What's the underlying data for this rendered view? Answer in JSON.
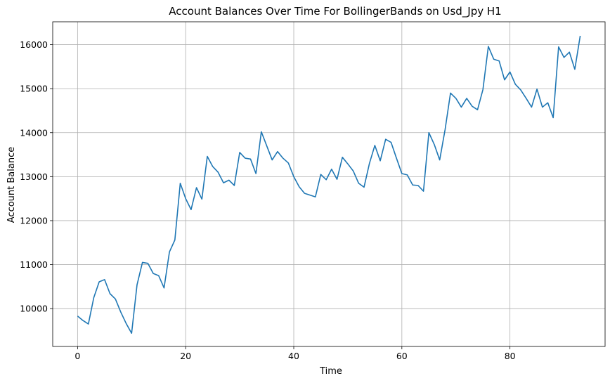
{
  "chart_data": {
    "type": "line",
    "title": "Account Balances Over Time For BollingerBands on Usd_Jpy H1",
    "xlabel": "Time",
    "ylabel": "Account Balance",
    "xlim": [
      -4.6,
      97.6
    ],
    "ylim": [
      9140,
      16520
    ],
    "xticks": [
      0,
      20,
      40,
      60,
      80
    ],
    "yticks": [
      10000,
      11000,
      12000,
      13000,
      14000,
      15000,
      16000
    ],
    "grid": true,
    "series": [
      {
        "color": "#1f77b4",
        "x": [
          0,
          1,
          2,
          3,
          4,
          5,
          6,
          7,
          8,
          9,
          10,
          11,
          12,
          13,
          14,
          15,
          16,
          17,
          18,
          19,
          20,
          21,
          22,
          23,
          24,
          25,
          26,
          27,
          28,
          29,
          30,
          31,
          32,
          33,
          34,
          35,
          36,
          37,
          38,
          39,
          40,
          41,
          42,
          43,
          44,
          45,
          46,
          47,
          48,
          49,
          50,
          51,
          52,
          53,
          54,
          55,
          56,
          57,
          58,
          59,
          60,
          61,
          62,
          63,
          64,
          65,
          66,
          67,
          68,
          69,
          70,
          71,
          72,
          73,
          74,
          75,
          76,
          77,
          78,
          79,
          80,
          81,
          82,
          83,
          84,
          85,
          86,
          87,
          88,
          89,
          90,
          91,
          92,
          93
        ],
        "values": [
          9830,
          9730,
          9650,
          10250,
          10610,
          10660,
          10340,
          10220,
          9920,
          9660,
          9440,
          10540,
          11050,
          11030,
          10800,
          10750,
          10470,
          11290,
          11560,
          12850,
          12500,
          12250,
          12750,
          12490,
          13460,
          13230,
          13100,
          12860,
          12920,
          12800,
          13550,
          13420,
          13400,
          13070,
          14020,
          13700,
          13380,
          13570,
          13420,
          13310,
          13000,
          12770,
          12620,
          12580,
          12540,
          13050,
          12930,
          13170,
          12940,
          13440,
          13290,
          13130,
          12850,
          12760,
          13300,
          13710,
          13360,
          13850,
          13780,
          13420,
          13070,
          13040,
          12810,
          12800,
          12670,
          14000,
          13730,
          13380,
          14070,
          14900,
          14780,
          14580,
          14780,
          14600,
          14520,
          14980,
          15960,
          15670,
          15630,
          15200,
          15380,
          15100,
          14970,
          14780,
          14580,
          14990,
          14580,
          14680,
          14340,
          15950,
          15710,
          15830,
          15440,
          16200
        ]
      }
    ]
  }
}
